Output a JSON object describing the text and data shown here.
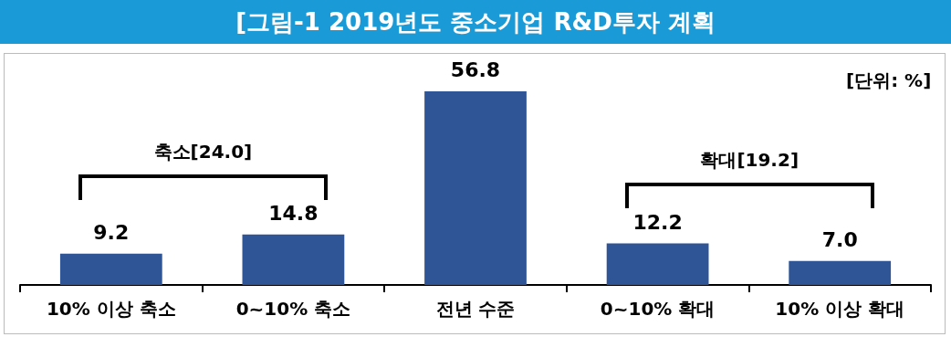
{
  "chart_data": {
    "type": "bar",
    "title": "[그림-1 2019년도 중소기업 R&D투자 계획",
    "categories": [
      "10% 이상 축소",
      "0~10% 축소",
      "전년 수준",
      "0~10% 확대",
      "10% 이상 확대"
    ],
    "values": [
      9.2,
      14.8,
      56.8,
      12.2,
      7.0
    ],
    "color": "#2f5597",
    "value_labels": [
      "9.2",
      "14.8",
      "56.8",
      "12.2",
      "7.0"
    ],
    "annotations": [
      "[단위: %]",
      "축소[24.0]",
      "확대[19.2]"
    ]
  }
}
